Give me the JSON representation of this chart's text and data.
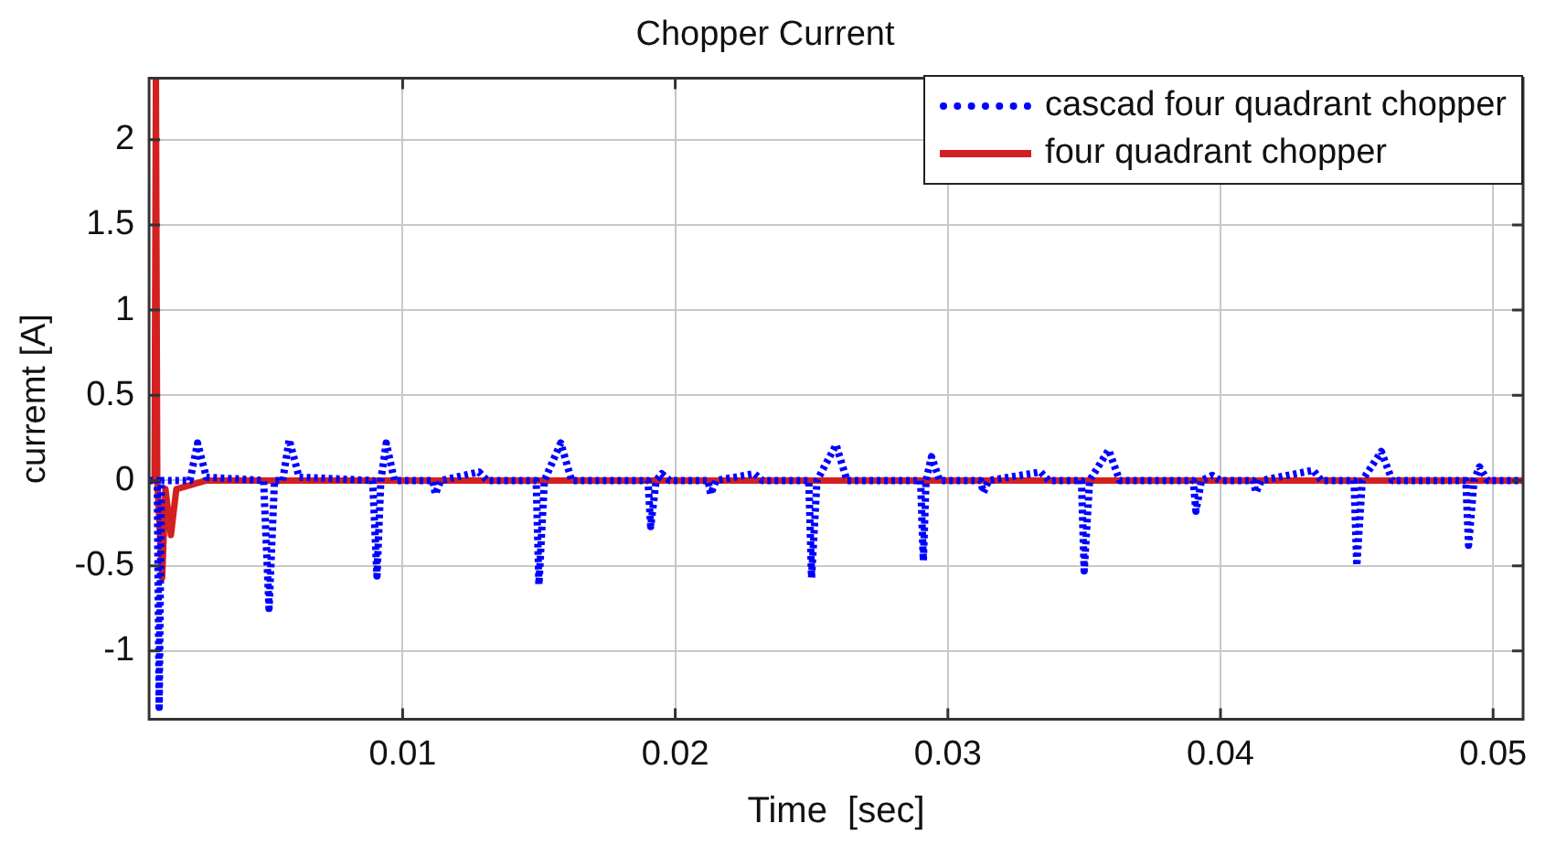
{
  "chart_data": {
    "type": "line",
    "title": "Chopper Current",
    "xlabel": "Time  [sec]",
    "ylabel": "curremt [A]",
    "xlim": [
      0.0007,
      0.0511
    ],
    "xticks": [
      0.01,
      0.02,
      0.03,
      0.04,
      0.05
    ],
    "ylim": [
      -1.4,
      2.36
    ],
    "yticks": [
      -1,
      -0.5,
      0,
      0.5,
      1,
      1.5,
      2
    ],
    "grid": true,
    "legend": "top right",
    "marker": "none",
    "series": [
      {
        "name": "cascad four quadrant chopper",
        "color": "#0000ff",
        "line_style": "dotted",
        "x": [
          0.0007,
          0.001,
          0.00107,
          0.00115,
          0.0022,
          0.00248,
          0.0028,
          0.0049,
          0.0051,
          0.0053,
          0.0056,
          0.00584,
          0.0062,
          0.0089,
          0.00906,
          0.0092,
          0.0094,
          0.0097,
          0.0111,
          0.0112,
          0.0114,
          0.0128,
          0.0131,
          0.0149,
          0.015,
          0.0152,
          0.0158,
          0.0162,
          0.019,
          0.0191,
          0.0193,
          0.0195,
          0.0198,
          0.0212,
          0.0213,
          0.0215,
          0.0229,
          0.0232,
          0.0249,
          0.025,
          0.0252,
          0.0259,
          0.0263,
          0.029,
          0.0291,
          0.0292,
          0.0294,
          0.0297,
          0.0312,
          0.0313,
          0.0315,
          0.0334,
          0.0337,
          0.0349,
          0.035,
          0.0352,
          0.0359,
          0.0363,
          0.039,
          0.0391,
          0.0393,
          0.0397,
          0.04,
          0.0412,
          0.0413,
          0.0415,
          0.0434,
          0.0437,
          0.0449,
          0.045,
          0.0452,
          0.0459,
          0.0463,
          0.049,
          0.0491,
          0.0493,
          0.0495,
          0.0498,
          0.0511
        ],
        "values": [
          0,
          0,
          -1.33,
          0,
          0,
          0.22,
          0.02,
          0,
          -0.75,
          0,
          0,
          0.24,
          0.02,
          0,
          -0.56,
          0,
          0.22,
          0,
          0,
          -0.08,
          0,
          0.05,
          0,
          0,
          -0.61,
          0,
          0.22,
          0,
          0,
          -0.27,
          0,
          0.04,
          0,
          0,
          -0.08,
          0,
          0.04,
          0,
          0,
          -0.57,
          0,
          0.21,
          0,
          0,
          -0.47,
          0,
          0.14,
          0,
          0,
          -0.07,
          0,
          0.05,
          0,
          0,
          -0.53,
          0,
          0.18,
          0,
          0,
          -0.18,
          0,
          0.03,
          0,
          0,
          -0.07,
          0,
          0.06,
          0,
          0,
          -0.5,
          0,
          0.17,
          0,
          0,
          -0.38,
          0,
          0.08,
          0,
          0
        ]
      },
      {
        "name": "four quadrant chopper",
        "color": "#d42020",
        "line_style": "solid",
        "x": [
          0.0007,
          0.0009,
          0.00095,
          0.001,
          0.00118,
          0.0013,
          0.0015,
          0.0017,
          0.0028,
          0.0511
        ],
        "values": [
          0,
          0,
          2.36,
          0,
          -0.57,
          -0.05,
          -0.32,
          -0.05,
          0,
          0
        ]
      }
    ]
  }
}
